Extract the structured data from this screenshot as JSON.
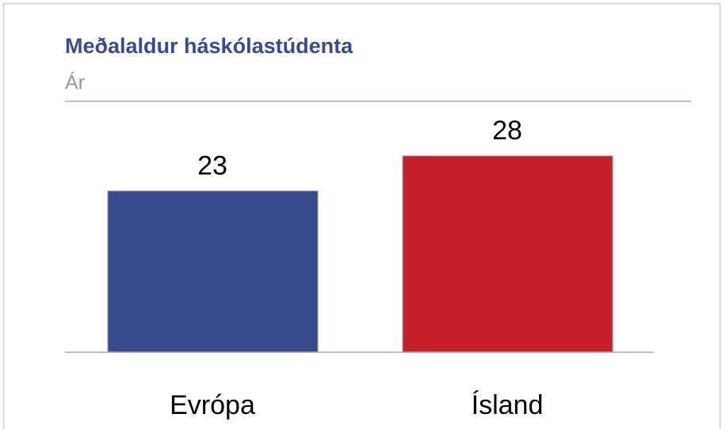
{
  "chart_data": {
    "type": "bar",
    "title": "Meðalaldur háskólastúdenta",
    "subtitle": "Ár",
    "categories": [
      "Evrópa",
      "Ísland"
    ],
    "values": [
      23,
      28
    ],
    "colors": [
      "#3a4a8f",
      "#c8202a"
    ]
  }
}
